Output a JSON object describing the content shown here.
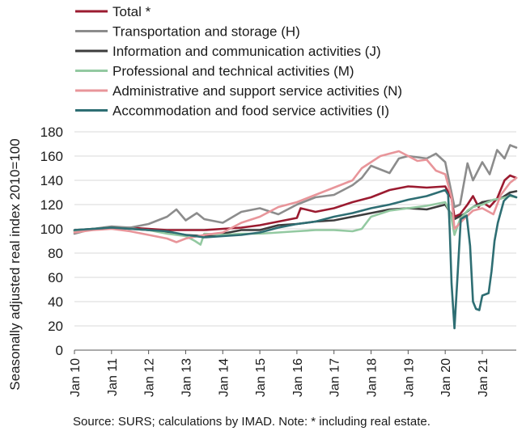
{
  "chart_data": {
    "type": "line",
    "ylabel": "Seasonally adjusted real index 2010=100",
    "ylim": [
      0,
      180
    ],
    "yticks": [
      0,
      20,
      40,
      60,
      80,
      100,
      120,
      140,
      160,
      180
    ],
    "xlim": [
      2010.0,
      2021.917
    ],
    "xticks": [
      "Jan 10",
      "Jan 11",
      "Jan 12",
      "Jan 13",
      "Jan 14",
      "Jan 15",
      "Jan 16",
      "Jan 17",
      "Jan 18",
      "Jan 19",
      "Jan 20",
      "Jan 21"
    ],
    "grid": "horizontal",
    "legend_position": "top",
    "source": "Source:  SURS; calculations by IMAD. Note: * including real estate.",
    "series": [
      {
        "name": "Total *",
        "color": "#9b1b30",
        "points": [
          [
            2010.0,
            98
          ],
          [
            2010.5,
            100
          ],
          [
            2011.0,
            101
          ],
          [
            2011.5,
            101
          ],
          [
            2012.0,
            100
          ],
          [
            2012.5,
            99
          ],
          [
            2013.0,
            99
          ],
          [
            2013.5,
            99
          ],
          [
            2014.0,
            100
          ],
          [
            2014.5,
            101
          ],
          [
            2015.0,
            103
          ],
          [
            2015.5,
            106
          ],
          [
            2016.0,
            109
          ],
          [
            2016.1,
            117
          ],
          [
            2016.5,
            114
          ],
          [
            2017.0,
            117
          ],
          [
            2017.5,
            122
          ],
          [
            2018.0,
            126
          ],
          [
            2018.5,
            132
          ],
          [
            2019.0,
            135
          ],
          [
            2019.5,
            134
          ],
          [
            2020.0,
            135
          ],
          [
            2020.17,
            125
          ],
          [
            2020.25,
            110
          ],
          [
            2020.4,
            112
          ],
          [
            2020.6,
            120
          ],
          [
            2020.75,
            127
          ],
          [
            2020.9,
            118
          ],
          [
            2021.0,
            122
          ],
          [
            2021.2,
            118
          ],
          [
            2021.4,
            125
          ],
          [
            2021.6,
            140
          ],
          [
            2021.75,
            144
          ],
          [
            2021.917,
            142
          ]
        ]
      },
      {
        "name": "Transportation and storage (H)",
        "color": "#8c8c8c",
        "points": [
          [
            2010.0,
            96
          ],
          [
            2010.5,
            100
          ],
          [
            2011.0,
            102
          ],
          [
            2011.5,
            101
          ],
          [
            2012.0,
            104
          ],
          [
            2012.5,
            110
          ],
          [
            2012.75,
            116
          ],
          [
            2013.0,
            107
          ],
          [
            2013.3,
            113
          ],
          [
            2013.5,
            108
          ],
          [
            2014.0,
            105
          ],
          [
            2014.5,
            114
          ],
          [
            2015.0,
            117
          ],
          [
            2015.5,
            112
          ],
          [
            2016.0,
            120
          ],
          [
            2016.5,
            126
          ],
          [
            2017.0,
            128
          ],
          [
            2017.5,
            136
          ],
          [
            2017.75,
            142
          ],
          [
            2018.0,
            152
          ],
          [
            2018.5,
            146
          ],
          [
            2018.75,
            158
          ],
          [
            2019.0,
            160
          ],
          [
            2019.5,
            158
          ],
          [
            2019.75,
            162
          ],
          [
            2020.0,
            155
          ],
          [
            2020.1,
            140
          ],
          [
            2020.25,
            118
          ],
          [
            2020.4,
            120
          ],
          [
            2020.6,
            154
          ],
          [
            2020.75,
            140
          ],
          [
            2021.0,
            155
          ],
          [
            2021.2,
            145
          ],
          [
            2021.4,
            165
          ],
          [
            2021.6,
            158
          ],
          [
            2021.75,
            169
          ],
          [
            2021.917,
            167
          ]
        ]
      },
      {
        "name": "Information and communication activities (J)",
        "color": "#3d3d3d",
        "points": [
          [
            2010.0,
            99
          ],
          [
            2010.5,
            100
          ],
          [
            2011.0,
            101
          ],
          [
            2011.5,
            100
          ],
          [
            2012.0,
            99
          ],
          [
            2012.5,
            97
          ],
          [
            2013.0,
            95
          ],
          [
            2013.5,
            94
          ],
          [
            2014.0,
            96
          ],
          [
            2014.5,
            99
          ],
          [
            2015.0,
            99
          ],
          [
            2015.5,
            103
          ],
          [
            2016.0,
            104
          ],
          [
            2016.5,
            106
          ],
          [
            2017.0,
            107
          ],
          [
            2017.5,
            110
          ],
          [
            2018.0,
            113
          ],
          [
            2018.5,
            116
          ],
          [
            2019.0,
            117
          ],
          [
            2019.5,
            116
          ],
          [
            2020.0,
            120
          ],
          [
            2020.25,
            108
          ],
          [
            2020.5,
            112
          ],
          [
            2020.75,
            118
          ],
          [
            2021.0,
            122
          ],
          [
            2021.5,
            125
          ],
          [
            2021.75,
            130
          ],
          [
            2021.917,
            131
          ]
        ]
      },
      {
        "name": "Professional and technical activities (M)",
        "color": "#93c9a1",
        "points": [
          [
            2010.0,
            98
          ],
          [
            2010.5,
            100
          ],
          [
            2011.0,
            101
          ],
          [
            2011.5,
            100
          ],
          [
            2012.0,
            99
          ],
          [
            2012.5,
            96
          ],
          [
            2013.0,
            94
          ],
          [
            2013.25,
            90
          ],
          [
            2013.4,
            87
          ],
          [
            2013.5,
            96
          ],
          [
            2014.0,
            95
          ],
          [
            2014.5,
            96
          ],
          [
            2015.0,
            96
          ],
          [
            2015.5,
            97
          ],
          [
            2016.0,
            98
          ],
          [
            2016.5,
            99
          ],
          [
            2017.0,
            99
          ],
          [
            2017.5,
            98
          ],
          [
            2017.75,
            100
          ],
          [
            2018.0,
            110
          ],
          [
            2018.5,
            115
          ],
          [
            2019.0,
            117
          ],
          [
            2019.5,
            119
          ],
          [
            2020.0,
            122
          ],
          [
            2020.15,
            112
          ],
          [
            2020.25,
            95
          ],
          [
            2020.4,
            108
          ],
          [
            2020.6,
            115
          ],
          [
            2020.75,
            118
          ],
          [
            2021.0,
            120
          ],
          [
            2021.3,
            124
          ],
          [
            2021.5,
            125
          ],
          [
            2021.75,
            127
          ],
          [
            2021.917,
            126
          ]
        ]
      },
      {
        "name": "Administrative and support service activities (N)",
        "color": "#e8959a",
        "points": [
          [
            2010.0,
            97
          ],
          [
            2010.5,
            99
          ],
          [
            2011.0,
            100
          ],
          [
            2011.5,
            98
          ],
          [
            2012.0,
            95
          ],
          [
            2012.5,
            92
          ],
          [
            2012.75,
            89
          ],
          [
            2013.0,
            92
          ],
          [
            2013.5,
            95
          ],
          [
            2014.0,
            97
          ],
          [
            2014.5,
            105
          ],
          [
            2015.0,
            110
          ],
          [
            2015.5,
            118
          ],
          [
            2016.0,
            122
          ],
          [
            2016.5,
            128
          ],
          [
            2017.0,
            134
          ],
          [
            2017.5,
            140
          ],
          [
            2017.75,
            150
          ],
          [
            2018.0,
            155
          ],
          [
            2018.25,
            160
          ],
          [
            2018.5,
            162
          ],
          [
            2018.75,
            164
          ],
          [
            2019.0,
            160
          ],
          [
            2019.25,
            156
          ],
          [
            2019.5,
            157
          ],
          [
            2019.75,
            148
          ],
          [
            2020.0,
            145
          ],
          [
            2020.17,
            126
          ],
          [
            2020.25,
            100
          ],
          [
            2020.5,
            108
          ],
          [
            2020.75,
            115
          ],
          [
            2021.0,
            117
          ],
          [
            2021.3,
            112
          ],
          [
            2021.5,
            128
          ],
          [
            2021.75,
            138
          ],
          [
            2021.917,
            142
          ]
        ]
      },
      {
        "name": "Accommodation and food service activities (I)",
        "color": "#2e6e73",
        "points": [
          [
            2010.0,
            99
          ],
          [
            2010.5,
            100
          ],
          [
            2011.0,
            101
          ],
          [
            2011.5,
            100
          ],
          [
            2012.0,
            99
          ],
          [
            2012.5,
            98
          ],
          [
            2013.0,
            95
          ],
          [
            2013.5,
            93
          ],
          [
            2014.0,
            94
          ],
          [
            2014.5,
            95
          ],
          [
            2015.0,
            97
          ],
          [
            2015.5,
            101
          ],
          [
            2016.0,
            104
          ],
          [
            2016.5,
            106
          ],
          [
            2017.0,
            110
          ],
          [
            2017.5,
            113
          ],
          [
            2018.0,
            117
          ],
          [
            2018.5,
            120
          ],
          [
            2019.0,
            124
          ],
          [
            2019.5,
            127
          ],
          [
            2020.0,
            132
          ],
          [
            2020.08,
            128
          ],
          [
            2020.12,
            100
          ],
          [
            2020.17,
            55
          ],
          [
            2020.25,
            18
          ],
          [
            2020.33,
            60
          ],
          [
            2020.42,
            108
          ],
          [
            2020.58,
            111
          ],
          [
            2020.67,
            86
          ],
          [
            2020.75,
            40
          ],
          [
            2020.83,
            34
          ],
          [
            2020.92,
            33
          ],
          [
            2021.0,
            45
          ],
          [
            2021.17,
            47
          ],
          [
            2021.25,
            65
          ],
          [
            2021.33,
            90
          ],
          [
            2021.42,
            105
          ],
          [
            2021.58,
            123
          ],
          [
            2021.75,
            128
          ],
          [
            2021.917,
            126
          ]
        ]
      }
    ]
  }
}
